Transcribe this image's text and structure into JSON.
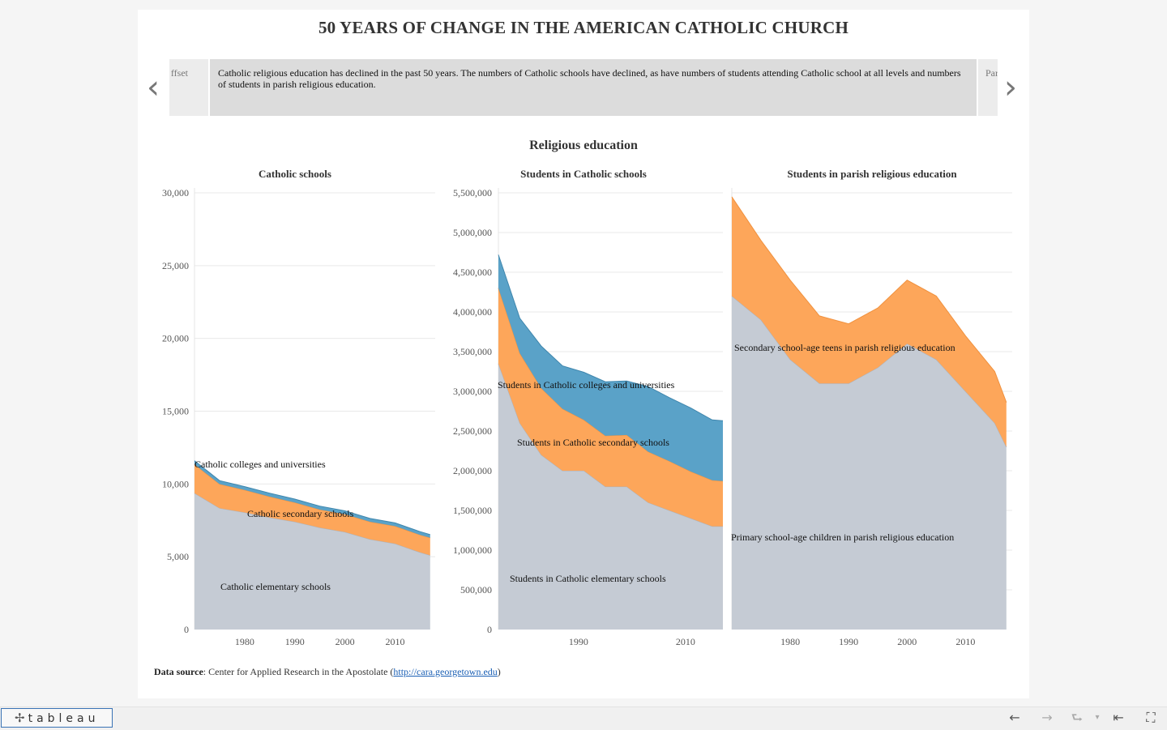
{
  "dashboard": {
    "title": "50 YEARS OF CHANGE IN THE AMERICAN CATHOLIC CHURCH",
    "story": {
      "prev_label": "ffset",
      "current_text": "Catholic religious education has declined in the past 50 years.  The numbers of Catholic schools have declined, as have numbers of students attending Catholic school at all levels and numbers of students in parish religious education.",
      "next_label": "Par"
    },
    "section_title": "Religious education",
    "source": {
      "label": "Data source",
      "text": ": Center for Applied Research in the Apostolate (",
      "link": "http://cara.georgetown.edu",
      "close": ")"
    }
  },
  "colors": {
    "elementary": "#c5cbd4",
    "secondary": "#fda65a",
    "college": "#5aa2c8",
    "grid": "#e9e9e9"
  },
  "toolbar": {
    "logo": "tableau",
    "icons": [
      "undo-icon",
      "redo-icon",
      "revert-icon",
      "reset-icon",
      "fullscreen-icon"
    ]
  },
  "chart_data": [
    {
      "type": "area",
      "stacked": true,
      "title": "Catholic schools",
      "xlim": [
        1970,
        2018
      ],
      "ylim": [
        0,
        30000
      ],
      "yticks": [
        0,
        5000,
        10000,
        15000,
        20000,
        25000,
        30000
      ],
      "ytick_labels": [
        "0",
        "5,000",
        "10,000",
        "15,000",
        "20,000",
        "25,000",
        "30,000"
      ],
      "xticks": [
        1980,
        1990,
        2000,
        2010
      ],
      "x": [
        1970,
        1975,
        1980,
        1985,
        1990,
        1995,
        2000,
        2005,
        2010,
        2015,
        2017
      ],
      "series": [
        {
          "name": "Catholic elementary schools",
          "key": "elementary",
          "values": [
            9366,
            8340,
            8043,
            7700,
            7400,
            7000,
            6700,
            6200,
            5900,
            5300,
            5100
          ]
        },
        {
          "name": "Catholic secondary schools",
          "key": "secondary",
          "values": [
            1981,
            1650,
            1540,
            1430,
            1324,
            1240,
            1221,
            1200,
            1200,
            1200,
            1200
          ]
        },
        {
          "name": "Catholic colleges and universities",
          "key": "college",
          "values": [
            245,
            240,
            235,
            235,
            235,
            235,
            235,
            230,
            225,
            225,
            225
          ]
        }
      ],
      "labels": [
        {
          "text": "Catholic colleges and universities",
          "series": "college"
        },
        {
          "text": "Catholic secondary schools",
          "series": "secondary"
        },
        {
          "text": "Catholic elementary schools",
          "series": "elementary"
        }
      ]
    },
    {
      "type": "area",
      "stacked": true,
      "title": "Students in Catholic schools",
      "xlim": [
        1975,
        2017
      ],
      "ylim": [
        0,
        5500000
      ],
      "yticks": [
        0,
        500000,
        1000000,
        1500000,
        2000000,
        2500000,
        3000000,
        3500000,
        4000000,
        4500000,
        5000000,
        5500000
      ],
      "ytick_labels": [
        "0",
        "500,000",
        "1,000,000",
        "1,500,000",
        "2,000,000",
        "2,500,000",
        "3,000,000",
        "3,500,000",
        "4,000,000",
        "4,500,000",
        "5,000,000",
        "5,500,000"
      ],
      "xticks": [
        1990,
        2010
      ],
      "x": [
        1975,
        1979,
        1983,
        1987,
        1991,
        1995,
        1999,
        2003,
        2007,
        2011,
        2015,
        2017
      ],
      "series": [
        {
          "name": "Students in Catholic elementary schools",
          "key": "elementary",
          "values": [
            3350000,
            2600000,
            2200000,
            2000000,
            2000000,
            1800000,
            1800000,
            1600000,
            1500000,
            1400000,
            1300000,
            1300000
          ]
        },
        {
          "name": "Students in Catholic secondary schools",
          "key": "secondary",
          "values": [
            950000,
            880000,
            840000,
            780000,
            640000,
            640000,
            650000,
            640000,
            620000,
            590000,
            580000,
            570000
          ]
        },
        {
          "name": "Students in Catholic colleges and universities",
          "key": "college",
          "values": [
            420000,
            440000,
            530000,
            540000,
            600000,
            680000,
            680000,
            820000,
            800000,
            800000,
            760000,
            760000
          ]
        }
      ],
      "labels": [
        {
          "text": "Students in Catholic colleges and universities",
          "series": "college"
        },
        {
          "text": "Students in Catholic secondary schools",
          "series": "secondary"
        },
        {
          "text": "Students in Catholic elementary schools",
          "series": "elementary"
        }
      ]
    },
    {
      "type": "area",
      "stacked": true,
      "title": "Students in parish religious education",
      "xlim": [
        1970,
        2018
      ],
      "ylim": [
        0,
        5500000
      ],
      "yticks": [
        0,
        500000,
        1000000,
        1500000,
        2000000,
        2500000,
        3000000,
        3500000,
        4000000,
        4500000,
        5000000,
        5500000
      ],
      "xticks": [
        1980,
        1990,
        2000,
        2010
      ],
      "x": [
        1970,
        1975,
        1980,
        1985,
        1990,
        1995,
        2000,
        2005,
        2010,
        2015,
        2017
      ],
      "series": [
        {
          "name": "Primary school-age children in parish religious education",
          "key": "elementary",
          "values": [
            4200000,
            3900000,
            3400000,
            3100000,
            3100000,
            3300000,
            3600000,
            3400000,
            3000000,
            2600000,
            2300000
          ]
        },
        {
          "name": "Secondary school-age teens in parish religious education",
          "key": "secondary",
          "values": [
            1250000,
            1000000,
            1000000,
            850000,
            750000,
            750000,
            800000,
            800000,
            700000,
            650000,
            560000
          ]
        }
      ],
      "labels": [
        {
          "text": "Secondary school-age teens in parish religious education",
          "series": "secondary"
        },
        {
          "text": "Primary school-age children in parish religious education",
          "series": "elementary"
        }
      ]
    }
  ]
}
